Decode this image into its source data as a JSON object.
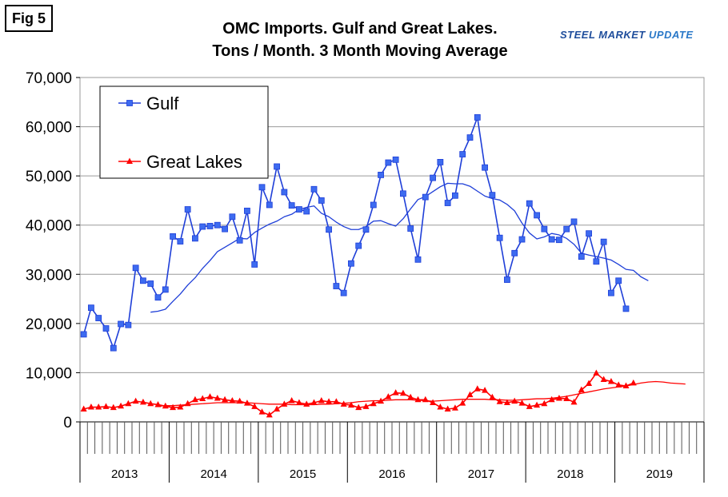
{
  "fig_label": "Fig 5",
  "title_line1": "OMC Imports. Gulf and Great Lakes.",
  "title_line2": "Tons / Month. 3 Month Moving Average",
  "brand": {
    "part1": "STEEL MARKET",
    "part2": "UPDATE"
  },
  "colors": {
    "gulf": "#1f3fd8",
    "gulf_marker": "#3d6bf0",
    "great_lakes": "#ff0000",
    "grid": "#9a9a9a"
  },
  "chart_data": {
    "type": "line",
    "title": "OMC Imports. Gulf and Great Lakes. Tons / Month. 3 Month Moving Average",
    "ylim": [
      0,
      70000
    ],
    "y_ticks": [
      "0",
      "10,000",
      "20,000",
      "30,000",
      "40,000",
      "50,000",
      "60,000",
      "70,000"
    ],
    "y_tick_values": [
      0,
      10000,
      20000,
      30000,
      40000,
      50000,
      60000,
      70000
    ],
    "x_year_labels": [
      "2013",
      "2014",
      "2015",
      "2016",
      "2017",
      "2018",
      "2019"
    ],
    "months_total": 84,
    "grid": true,
    "legend": {
      "position": "top-left",
      "entries": [
        "Gulf",
        "Great Lakes"
      ]
    },
    "series": [
      {
        "name": "Gulf",
        "marker": "square",
        "start_month": 0,
        "values": [
          17800,
          23200,
          21100,
          19000,
          15000,
          19900,
          19700,
          31300,
          28700,
          28100,
          25300,
          26900,
          37700,
          36700,
          43200,
          37300,
          39700,
          39800,
          40000,
          39200,
          41700,
          36900,
          42900,
          32000,
          47700,
          44100,
          51900,
          46700,
          44000,
          43200,
          42800,
          47300,
          45000,
          39100,
          27600,
          26200,
          32200,
          35800,
          39100,
          44100,
          50200,
          52700,
          53300,
          46400,
          39300,
          33000,
          45700,
          49600,
          52800,
          44500,
          46000,
          54400,
          57800,
          61900,
          51700,
          46100,
          37400,
          28900,
          34300,
          37100,
          44400,
          42000,
          39200,
          37100,
          37000,
          39200,
          40700,
          33600,
          38300,
          32600,
          36600,
          26200,
          28700,
          23000
        ]
      },
      {
        "name": "Great Lakes",
        "marker": "triangle",
        "start_month": 0,
        "values": [
          2600,
          3000,
          3000,
          3100,
          2900,
          3200,
          3700,
          4200,
          4000,
          3700,
          3500,
          3200,
          2900,
          3000,
          3700,
          4500,
          4700,
          5100,
          4800,
          4500,
          4300,
          4200,
          3800,
          3100,
          2000,
          1400,
          2600,
          3600,
          4300,
          3900,
          3600,
          3900,
          4300,
          4100,
          4100,
          3600,
          3400,
          2900,
          3100,
          3700,
          4200,
          5100,
          5900,
          5800,
          5000,
          4500,
          4500,
          3900,
          3000,
          2600,
          2800,
          3800,
          5500,
          6700,
          6400,
          5000,
          4100,
          3900,
          4200,
          3800,
          3100,
          3400,
          3700,
          4500,
          4800,
          4700,
          4000,
          6500,
          7800,
          9900,
          8600,
          8200,
          7500,
          7300,
          7900
        ]
      },
      {
        "name": "Gulf 12-month average",
        "marker": "none",
        "start_month": 9,
        "values": [
          22300,
          22500,
          22900,
          24500,
          26000,
          27800,
          29300,
          31200,
          32800,
          34600,
          35500,
          36400,
          37300,
          37200,
          38500,
          39400,
          40200,
          40800,
          41700,
          42200,
          43200,
          43600,
          43900,
          42400,
          41700,
          40600,
          39700,
          39100,
          39100,
          39700,
          40800,
          40900,
          40300,
          39800,
          41300,
          43300,
          45200,
          45800,
          46800,
          47800,
          48500,
          48400,
          48400,
          47900,
          46900,
          45900,
          45400,
          45100,
          44200,
          42900,
          40400,
          38400,
          37200,
          37600,
          38300,
          38000,
          37300,
          36100,
          34300,
          33900,
          33600,
          33300,
          32900,
          32000,
          31000,
          30800,
          29500,
          28700
        ]
      },
      {
        "name": "Great Lakes 12-month average",
        "marker": "none",
        "start_month": 10,
        "values": [
          3200,
          3300,
          3300,
          3400,
          3500,
          3600,
          3700,
          3800,
          3900,
          3900,
          3900,
          3900,
          3900,
          3800,
          3700,
          3600,
          3600,
          3600,
          3500,
          3500,
          3500,
          3500,
          3600,
          3600,
          3700,
          3800,
          3900,
          4100,
          4200,
          4300,
          4300,
          4400,
          4500,
          4500,
          4500,
          4400,
          4300,
          4200,
          4300,
          4400,
          4500,
          4600,
          4600,
          4600,
          4600,
          4500,
          4500,
          4400,
          4400,
          4500,
          4600,
          4700,
          4700,
          4800,
          5000,
          5200,
          5500,
          5800,
          6100,
          6400,
          6700,
          6900,
          7100,
          7300,
          7600,
          7900,
          8100,
          8200,
          8100,
          7900,
          7800,
          7700
        ]
      }
    ]
  }
}
